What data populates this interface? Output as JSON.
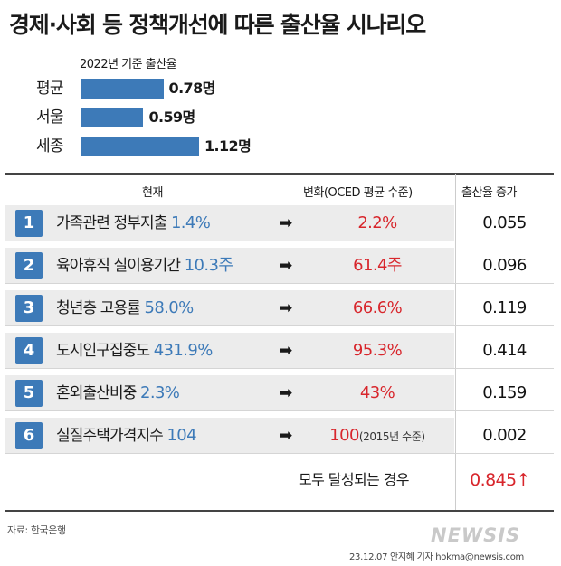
{
  "title": "경제·사회 등 정책개선에 따른 출산율 시나리오",
  "colors": {
    "bar": "#3d7ab8",
    "number_box": "#3d7ab8",
    "current_value": "#3d7ab8",
    "target_value": "#d8262c",
    "row_shade": "#ececec"
  },
  "chart_data": [
    {
      "type": "bar",
      "orientation": "horizontal",
      "title": "2022년 기준 출산율",
      "categories": [
        "평균",
        "서울",
        "세종"
      ],
      "values": [
        0.78,
        0.59,
        1.12
      ],
      "value_labels": [
        "0.78명",
        "0.59명",
        "1.12명"
      ],
      "xlim": [
        0,
        1.2
      ]
    },
    {
      "type": "table",
      "headers": [
        "현재",
        "변화(OCED 평균 수준)",
        "출산율 증가"
      ],
      "rows": [
        {
          "num": "1",
          "label": "가족관련 정부지출",
          "current": "1.4%",
          "arrow": "➡",
          "target": "2.2%",
          "note": "",
          "increase": "0.055"
        },
        {
          "num": "2",
          "label": "육아휴직 실이용기간",
          "current": "10.3주",
          "arrow": "➡",
          "target": "61.4주",
          "note": "",
          "increase": "0.096"
        },
        {
          "num": "3",
          "label": "청년층 고용률",
          "current": "58.0%",
          "arrow": "➡",
          "target": "66.6%",
          "note": "",
          "increase": "0.119"
        },
        {
          "num": "4",
          "label": "도시인구집중도",
          "current": "431.9%",
          "arrow": "➡",
          "target": "95.3%",
          "note": "",
          "increase": "0.414"
        },
        {
          "num": "5",
          "label": "혼외출산비중",
          "current": "2.3%",
          "arrow": "➡",
          "target": "43%",
          "note": "",
          "increase": "0.159"
        },
        {
          "num": "6",
          "label": "실질주택가격지수",
          "current": "104",
          "arrow": "➡",
          "target": "100",
          "note": "(2015년 수준)",
          "increase": "0.002"
        }
      ],
      "total_label": "모두 달성되는 경우",
      "total_value": "0.845↑"
    }
  ],
  "source": "자료: 한국은행",
  "logo": "NEWSIS",
  "credit": "23.12.07 안지혜 기자 hokma@newsis.com"
}
